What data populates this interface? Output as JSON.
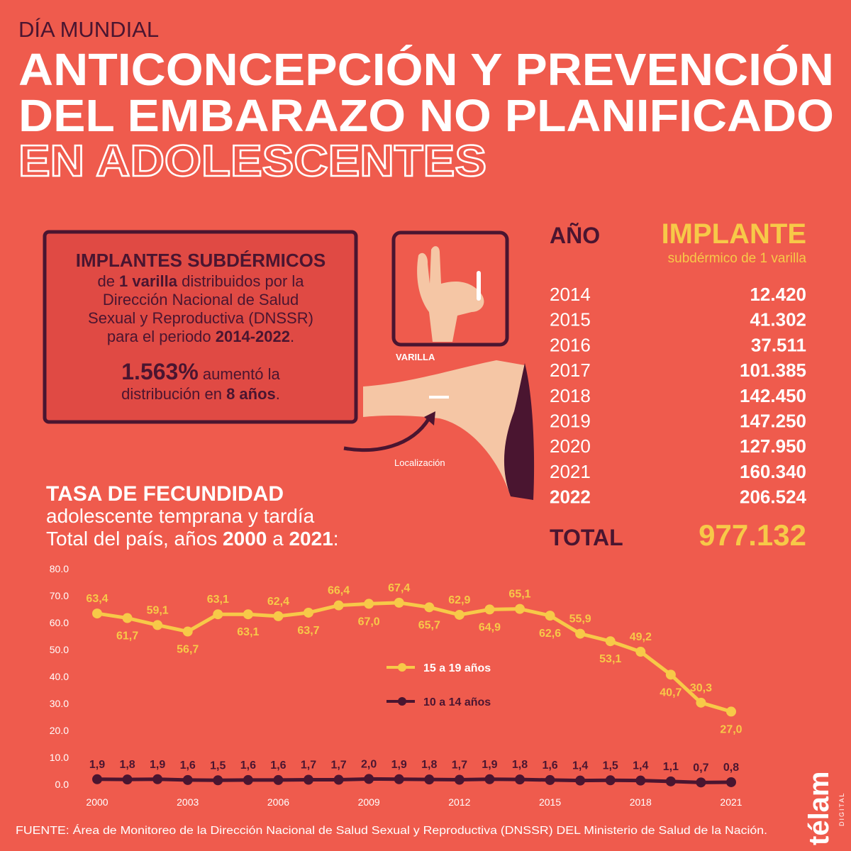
{
  "header": {
    "kicker": "DÍA MUNDIAL",
    "title_lines": [
      "ANTICONCEPCIÓN Y PREVENCIÓN",
      "DEL EMBARAZO NO PLANIFICADO"
    ],
    "outline_line": "EN ADOLESCENTES"
  },
  "box": {
    "heading": "IMPLANTES SUBDÉRMICOS",
    "line1": [
      "de ",
      "1 varilla",
      " distribuidos por la"
    ],
    "line2": "Dirección Nacional de Salud",
    "line3": "Sexual y Reproductiva (DNSSR)",
    "line4": [
      "para el periodo ",
      "2014-2022",
      "."
    ],
    "line5": [
      "1.563%",
      " aumentó la"
    ],
    "line6": [
      "distribución en ",
      "8 años",
      "."
    ]
  },
  "illustration": {
    "rod_label": "VARILLA",
    "location_label": "Localización"
  },
  "table": {
    "year_header": "AÑO",
    "value_header": "IMPLANTE",
    "value_subheader": "subdérmico de 1 varilla",
    "rows": [
      [
        "2014",
        "12.420"
      ],
      [
        "2015",
        "41.302"
      ],
      [
        "2016",
        "37.511"
      ],
      [
        "2017",
        "101.385"
      ],
      [
        "2018",
        "142.450"
      ],
      [
        "2019",
        "147.250"
      ],
      [
        "2020",
        "127.950"
      ],
      [
        "2021",
        "160.340"
      ],
      [
        "2022",
        "206.524"
      ]
    ],
    "total_label": "TOTAL",
    "total_value": "977.132"
  },
  "chart_data": {
    "type": "line",
    "title": "TASA DE FECUNDIDAD",
    "subtitle": "adolescente temprana y tardía",
    "subtitle2": [
      "Total del país, años ",
      "2000",
      " a ",
      "2021",
      ":"
    ],
    "x": [
      2000,
      2001,
      2002,
      2003,
      2004,
      2005,
      2006,
      2007,
      2008,
      2009,
      2010,
      2011,
      2012,
      2013,
      2014,
      2015,
      2016,
      2017,
      2018,
      2019,
      2020,
      2021
    ],
    "xlim": [
      2000,
      2021
    ],
    "xticks": [
      2000,
      2003,
      2006,
      2009,
      2012,
      2015,
      2018,
      2021
    ],
    "ylim": [
      0,
      80
    ],
    "yticks": [
      {
        "value": 0,
        "label": "0.0"
      },
      {
        "value": 10,
        "label": "10.0"
      },
      {
        "value": 20,
        "label": "20.0"
      },
      {
        "value": 30,
        "label": "30.0"
      },
      {
        "value": 40,
        "label": "40.0"
      },
      {
        "value": 50,
        "label": "50.0"
      },
      {
        "value": 60,
        "label": "60.0"
      },
      {
        "value": 70,
        "label": "70.0"
      },
      {
        "value": 80,
        "label": "80.0"
      }
    ],
    "grid": false,
    "series": [
      {
        "name": "15 a 19 años",
        "color": "#f7c948",
        "values": [
          63.4,
          61.7,
          59.1,
          56.7,
          63.1,
          63.1,
          62.4,
          63.7,
          66.4,
          67.0,
          67.4,
          65.7,
          62.9,
          64.9,
          65.1,
          62.6,
          55.9,
          53.1,
          49.2,
          40.7,
          30.3,
          27.0
        ],
        "value_labels": [
          "63,4",
          "61,7",
          "59,1",
          "56,7",
          "63,1",
          "63,1",
          "62,4",
          "63,7",
          "66,4",
          "67,0",
          "67,4",
          "65,7",
          "62,9",
          "64,9",
          "65,1",
          "62,6",
          "55,9",
          "53,1",
          "49,2",
          "40,7",
          "30,3",
          "27,0"
        ]
      },
      {
        "name": "10 a 14 años",
        "color": "#4a1530",
        "values": [
          1.9,
          1.8,
          1.9,
          1.6,
          1.5,
          1.6,
          1.6,
          1.7,
          1.7,
          2.0,
          1.9,
          1.8,
          1.7,
          1.9,
          1.8,
          1.6,
          1.4,
          1.5,
          1.4,
          1.1,
          0.7,
          0.8
        ],
        "value_labels": [
          "1,9",
          "1,8",
          "1,9",
          "1,6",
          "1,5",
          "1,6",
          "1,6",
          "1,7",
          "1,7",
          "2,0",
          "1,9",
          "1,8",
          "1,7",
          "1,9",
          "1,8",
          "1,6",
          "1,4",
          "1,5",
          "1,4",
          "1,1",
          "0,7",
          "0,8"
        ]
      }
    ]
  },
  "footer": {
    "source": "FUENTE: Área de Monitoreo de la Dirección Nacional de Salud Sexual y Reproductiva (DNSSR) DEL Ministerio de Salud de la Nación.",
    "logo": "télam",
    "logo_sub": "DIGITAL"
  }
}
